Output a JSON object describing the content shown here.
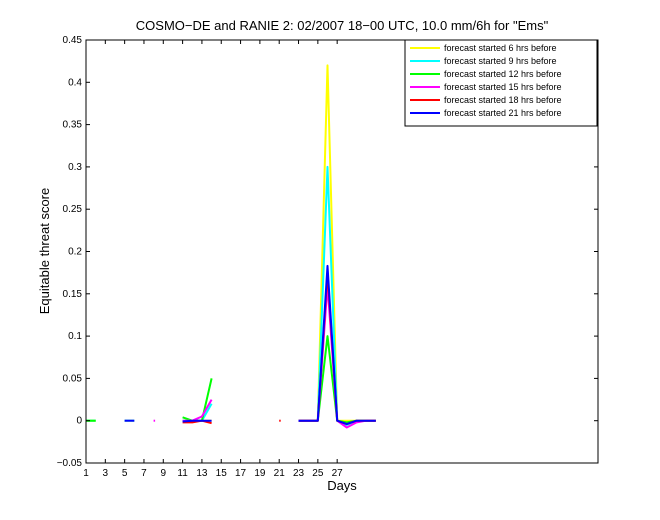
{
  "chart_data": {
    "type": "line",
    "title": "COSMO−DE and RANIE 2: 02/2007 18−00 UTC, 10.0 mm/6h for \"Ems\"",
    "xlabel": "Days",
    "ylabel": "Equitable threat score",
    "xlim": [
      1,
      54
    ],
    "ylim": [
      -0.05,
      0.45
    ],
    "x_ticks": [
      1,
      3,
      5,
      7,
      9,
      11,
      13,
      15,
      17,
      19,
      21,
      23,
      25,
      27
    ],
    "x_tick_labels": [
      "1",
      "3",
      "5",
      "7",
      "9",
      "11",
      "13",
      "15",
      "17",
      "19",
      "21",
      "23",
      "25",
      "27"
    ],
    "y_ticks": [
      -0.05,
      0,
      0.05,
      0.1,
      0.15,
      0.2,
      0.25,
      0.3,
      0.35,
      0.4,
      0.45
    ],
    "y_tick_labels": [
      "−0.05",
      "0",
      "0.05",
      "0.1",
      "0.15",
      "0.2",
      "0.25",
      "0.3",
      "0.35",
      "0.4",
      "0.45"
    ],
    "grid": false,
    "legend_position": "top-right",
    "series": [
      {
        "name": "forecast started 6 hrs before",
        "color": "#ffff00",
        "segments": [
          [
            [
              1,
              0
            ],
            [
              2,
              0
            ]
          ],
          [
            [
              5,
              0
            ],
            [
              6,
              0
            ]
          ],
          [
            [
              11,
              0
            ],
            [
              12,
              0
            ],
            [
              13,
              0
            ],
            [
              14,
              0
            ]
          ],
          [
            [
              23,
              0
            ],
            [
              24,
              0
            ],
            [
              25,
              0
            ],
            [
              26,
              0.42
            ],
            [
              27,
              0
            ],
            [
              28,
              0
            ],
            [
              29,
              0
            ],
            [
              30,
              0
            ],
            [
              31,
              0
            ]
          ]
        ]
      },
      {
        "name": "forecast started 9 hrs before",
        "color": "#00ffff",
        "segments": [
          [
            [
              1,
              0
            ],
            [
              2,
              0
            ]
          ],
          [
            [
              5,
              0
            ],
            [
              6,
              0
            ]
          ],
          [
            [
              11,
              0
            ],
            [
              12,
              0
            ],
            [
              13,
              0
            ],
            [
              14,
              0.02
            ]
          ],
          [
            [
              23,
              0
            ],
            [
              24,
              0
            ],
            [
              25,
              0
            ],
            [
              26,
              0.3
            ],
            [
              27,
              0
            ],
            [
              28,
              -0.005
            ],
            [
              29,
              0
            ],
            [
              30,
              0
            ],
            [
              31,
              0
            ]
          ]
        ]
      },
      {
        "name": "forecast started 12 hrs before",
        "color": "#00ff00",
        "segments": [
          [
            [
              1,
              0
            ],
            [
              2,
              0
            ]
          ],
          [
            [
              11,
              0.004
            ],
            [
              12,
              0
            ],
            [
              13,
              0
            ],
            [
              14,
              0.05
            ]
          ],
          [
            [
              23,
              0
            ],
            [
              24,
              0
            ],
            [
              25,
              0
            ],
            [
              26,
              0.1
            ],
            [
              27,
              0
            ],
            [
              28,
              -0.002
            ],
            [
              29,
              0
            ],
            [
              30,
              0
            ],
            [
              31,
              0
            ]
          ]
        ]
      },
      {
        "name": "forecast started 15 hrs before",
        "color": "#ff00ff",
        "segments": [
          [
            [
              8,
              0
            ],
            [
              8.15,
              0
            ]
          ],
          [
            [
              11,
              0
            ],
            [
              12,
              0
            ],
            [
              13,
              0.005
            ],
            [
              14,
              0.025
            ]
          ],
          [
            [
              23,
              0
            ],
            [
              24,
              0
            ],
            [
              25,
              0
            ],
            [
              26,
              0.16
            ],
            [
              27,
              0
            ],
            [
              28,
              -0.008
            ],
            [
              29,
              -0.002
            ],
            [
              30,
              0
            ],
            [
              31,
              0
            ]
          ]
        ]
      },
      {
        "name": "forecast started 18 hrs before",
        "color": "#ff0000",
        "segments": [
          [
            [
              11,
              -0.002
            ],
            [
              12,
              -0.002
            ],
            [
              13,
              0
            ],
            [
              14,
              -0.003
            ]
          ],
          [
            [
              21,
              0
            ],
            [
              21.15,
              0
            ]
          ],
          [
            [
              23,
              0
            ],
            [
              24,
              0
            ],
            [
              25,
              0
            ],
            [
              26,
              0.175
            ],
            [
              27,
              0
            ],
            [
              28,
              -0.004
            ],
            [
              29,
              0
            ],
            [
              30,
              0
            ],
            [
              31,
              0
            ]
          ]
        ]
      },
      {
        "name": "forecast started 21 hrs before",
        "color": "#0000ff",
        "segments": [
          [
            [
              5,
              0
            ],
            [
              6,
              0
            ]
          ],
          [
            [
              11,
              -0.001
            ],
            [
              12,
              0
            ],
            [
              13,
              0
            ],
            [
              14,
              0
            ]
          ],
          [
            [
              23,
              0
            ],
            [
              24,
              0
            ],
            [
              25,
              0
            ],
            [
              26,
              0.183
            ],
            [
              27,
              0
            ],
            [
              28,
              -0.004
            ],
            [
              29,
              0
            ],
            [
              30,
              0
            ],
            [
              31,
              0
            ]
          ]
        ]
      }
    ]
  }
}
